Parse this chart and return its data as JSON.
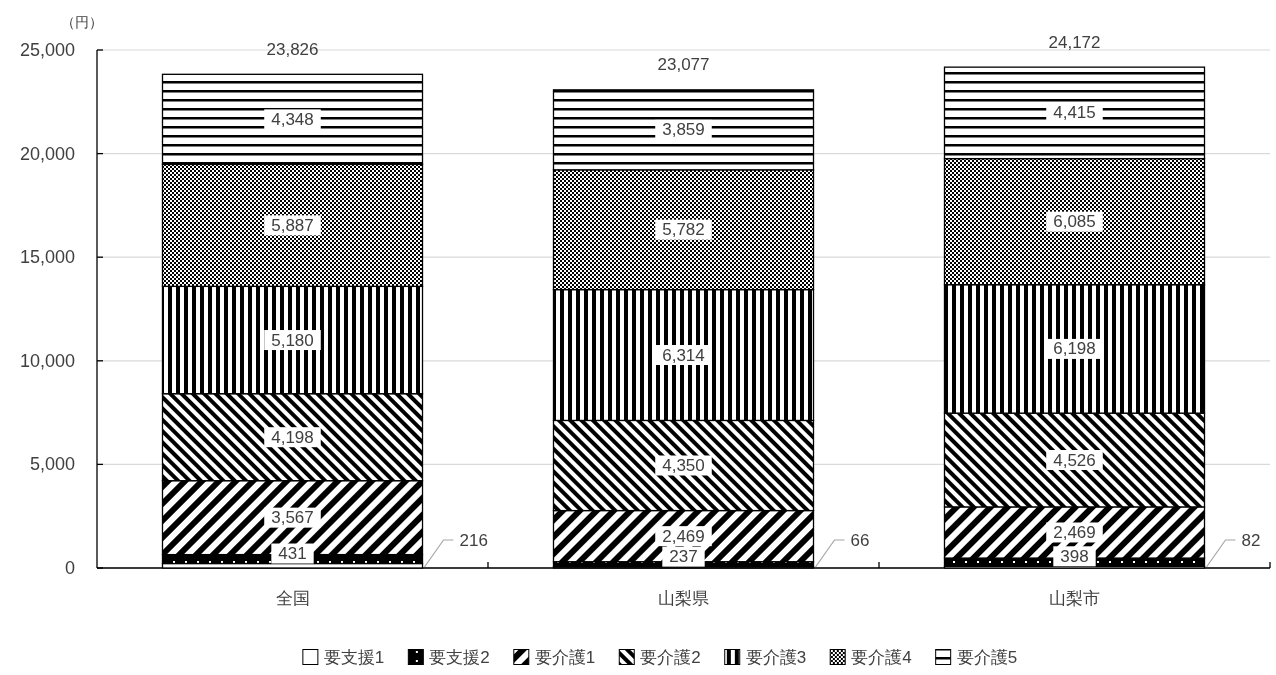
{
  "chart_data": {
    "type": "bar",
    "stacked": true,
    "ylabel": "（円）",
    "categories": [
      "全国",
      "山梨県",
      "山梨市"
    ],
    "series": [
      {
        "name": "要支援1",
        "color": "#ffffff",
        "values": [
          216,
          66,
          82
        ],
        "value_labels": [
          "216",
          "66",
          "82"
        ]
      },
      {
        "name": "要支援2",
        "color": "#000000",
        "values": [
          431,
          237,
          398
        ],
        "value_labels": [
          "431",
          "237",
          "398"
        ]
      },
      {
        "name": "要介護1",
        "color": "#000000",
        "values": [
          3567,
          2469,
          2469
        ],
        "value_labels": [
          "3,567",
          "2,469",
          "2,469"
        ]
      },
      {
        "name": "要介護2",
        "color": "#000000",
        "values": [
          4198,
          4350,
          4526
        ],
        "value_labels": [
          "4,198",
          "4,350",
          "4,526"
        ]
      },
      {
        "name": "要介護3",
        "color": "#000000",
        "values": [
          5180,
          6314,
          6198
        ],
        "value_labels": [
          "5,180",
          "6,314",
          "6,198"
        ]
      },
      {
        "name": "要介護4",
        "color": "#000000",
        "values": [
          5887,
          5782,
          6085
        ],
        "value_labels": [
          "5,887",
          "5,782",
          "6,085"
        ]
      },
      {
        "name": "要介護5",
        "color": "#000000",
        "values": [
          4348,
          3859,
          4415
        ],
        "value_labels": [
          "4,348",
          "3,859",
          "4,415"
        ]
      }
    ],
    "totals": [
      "23,826",
      "23,077",
      "24,172"
    ],
    "ylim": [
      0,
      25000
    ],
    "yticks": [
      0,
      {
        "value": 5000,
        "label": "5,000"
      },
      {
        "value": 10000,
        "label": "10,000"
      },
      {
        "value": 15000,
        "label": "15,000"
      },
      {
        "value": 20000,
        "label": "20,000"
      },
      {
        "value": 25000,
        "label": "25,000"
      }
    ],
    "grid": "y",
    "legend": "bottom"
  }
}
